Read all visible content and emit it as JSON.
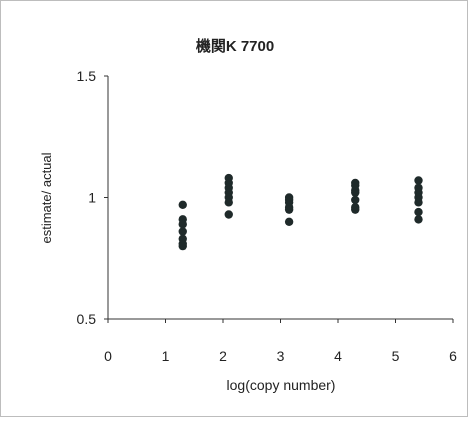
{
  "chart_data": {
    "type": "scatter",
    "title": "機関K 7700",
    "xlabel": "log(copy number)",
    "ylabel": "estimate/ actual",
    "xlim": [
      0,
      6
    ],
    "ylim": [
      0.5,
      1.5
    ],
    "x_ticks": [
      "0",
      "1",
      "2",
      "3",
      "4",
      "5",
      "6"
    ],
    "y_ticks": [
      "0.5",
      "1",
      "1.5"
    ],
    "grid": false,
    "legend": "none",
    "marker_color": "#1f2a2a",
    "points": [
      {
        "x": 1.3,
        "y": 0.97
      },
      {
        "x": 1.3,
        "y": 0.91
      },
      {
        "x": 1.3,
        "y": 0.89
      },
      {
        "x": 1.3,
        "y": 0.86
      },
      {
        "x": 1.3,
        "y": 0.83
      },
      {
        "x": 1.3,
        "y": 0.81
      },
      {
        "x": 1.3,
        "y": 0.8
      },
      {
        "x": 2.1,
        "y": 1.08
      },
      {
        "x": 2.1,
        "y": 1.06
      },
      {
        "x": 2.1,
        "y": 1.04
      },
      {
        "x": 2.1,
        "y": 1.02
      },
      {
        "x": 2.1,
        "y": 1.0
      },
      {
        "x": 2.1,
        "y": 0.98
      },
      {
        "x": 2.1,
        "y": 0.93
      },
      {
        "x": 3.15,
        "y": 1.0
      },
      {
        "x": 3.15,
        "y": 0.99
      },
      {
        "x": 3.15,
        "y": 0.98
      },
      {
        "x": 3.15,
        "y": 0.96
      },
      {
        "x": 3.15,
        "y": 0.95
      },
      {
        "x": 3.15,
        "y": 0.9
      },
      {
        "x": 4.3,
        "y": 1.06
      },
      {
        "x": 4.3,
        "y": 1.05
      },
      {
        "x": 4.3,
        "y": 1.03
      },
      {
        "x": 4.3,
        "y": 1.02
      },
      {
        "x": 4.3,
        "y": 0.99
      },
      {
        "x": 4.3,
        "y": 0.96
      },
      {
        "x": 4.3,
        "y": 0.95
      },
      {
        "x": 5.4,
        "y": 1.07
      },
      {
        "x": 5.4,
        "y": 1.04
      },
      {
        "x": 5.4,
        "y": 1.02
      },
      {
        "x": 5.4,
        "y": 1.0
      },
      {
        "x": 5.4,
        "y": 0.98
      },
      {
        "x": 5.4,
        "y": 0.94
      },
      {
        "x": 5.4,
        "y": 0.91
      }
    ]
  }
}
